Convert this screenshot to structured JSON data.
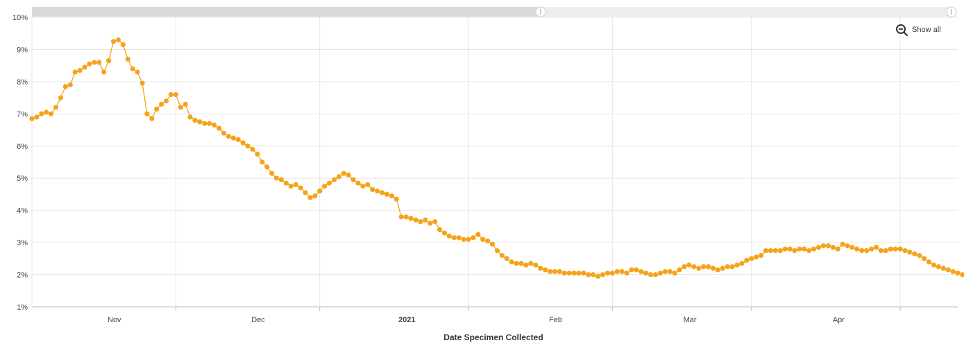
{
  "controls": {
    "show_all_label": "Show all",
    "zoom_out_icon": "zoom-out-icon",
    "navigator_handle_icon": "drag-handle-icon"
  },
  "colors": {
    "series": "#f5a31a",
    "grid": "#e6e6e6",
    "navigator_selected": "#d9d9d9",
    "navigator_track": "#eeeeee"
  },
  "chart_data": {
    "type": "line",
    "xlabel": "Date Specimen Collected",
    "ylabel": "",
    "y_unit": "%",
    "ylim": [
      1,
      10
    ],
    "yticks": [
      1,
      2,
      3,
      4,
      5,
      6,
      7,
      8,
      9,
      10
    ],
    "ytick_labels": [
      "1%",
      "2%",
      "3%",
      "4%",
      "5%",
      "6%",
      "7%",
      "8%",
      "9%",
      "10%"
    ],
    "xlim": [
      "2020-10-17",
      "2021-04-28"
    ],
    "xticks": [
      {
        "label": "Nov",
        "date": "2020-11-01",
        "bold": false
      },
      {
        "label": "Dec",
        "date": "2020-12-01",
        "bold": false
      },
      {
        "label": "2021",
        "date": "2021-01-01",
        "bold": true
      },
      {
        "label": "Feb",
        "date": "2021-02-01",
        "bold": false
      },
      {
        "label": "Mar",
        "date": "2021-03-01",
        "bold": false
      },
      {
        "label": "Apr",
        "date": "2021-04-01",
        "bold": false
      }
    ],
    "grid": true,
    "legend": "none",
    "series": [
      {
        "start_date": "2020-10-17",
        "step_days": 1,
        "values": [
          6.85,
          6.9,
          7.0,
          7.05,
          7.0,
          7.2,
          7.5,
          7.85,
          7.9,
          8.3,
          8.35,
          8.45,
          8.55,
          8.6,
          8.6,
          8.3,
          8.65,
          9.25,
          9.3,
          9.15,
          8.7,
          8.4,
          8.3,
          7.95,
          7.0,
          6.85,
          7.15,
          7.3,
          7.4,
          7.6,
          7.6,
          7.2,
          7.3,
          6.9,
          6.8,
          6.75,
          6.7,
          6.7,
          6.65,
          6.55,
          6.4,
          6.3,
          6.25,
          6.2,
          6.1,
          6.0,
          5.9,
          5.75,
          5.5,
          5.35,
          5.15,
          5.0,
          4.95,
          4.85,
          4.75,
          4.8,
          4.7,
          4.55,
          4.4,
          4.45,
          4.6,
          4.75,
          4.85,
          4.95,
          5.05,
          5.15,
          5.1,
          4.95,
          4.85,
          4.75,
          4.8,
          4.65,
          4.6,
          4.55,
          4.5,
          4.45,
          4.35,
          3.8,
          3.8,
          3.75,
          3.7,
          3.65,
          3.7,
          3.6,
          3.65,
          3.4,
          3.3,
          3.2,
          3.15,
          3.15,
          3.1,
          3.1,
          3.15,
          3.25,
          3.1,
          3.05,
          2.95,
          2.75,
          2.6,
          2.5,
          2.4,
          2.35,
          2.35,
          2.3,
          2.35,
          2.3,
          2.2,
          2.15,
          2.1,
          2.1,
          2.1,
          2.05,
          2.05,
          2.05,
          2.05,
          2.05,
          2.0,
          2.0,
          1.95,
          2.0,
          2.05,
          2.05,
          2.1,
          2.1,
          2.05,
          2.15,
          2.15,
          2.1,
          2.05,
          2.0,
          2.0,
          2.05,
          2.1,
          2.1,
          2.05,
          2.15,
          2.25,
          2.3,
          2.25,
          2.2,
          2.25,
          2.25,
          2.2,
          2.15,
          2.2,
          2.25,
          2.25,
          2.3,
          2.35,
          2.45,
          2.5,
          2.55,
          2.6,
          2.75,
          2.75,
          2.75,
          2.75,
          2.8,
          2.8,
          2.75,
          2.8,
          2.8,
          2.75,
          2.8,
          2.85,
          2.9,
          2.9,
          2.85,
          2.8,
          2.95,
          2.9,
          2.85,
          2.8,
          2.75,
          2.75,
          2.8,
          2.85,
          2.75,
          2.75,
          2.8,
          2.8,
          2.8,
          2.75,
          2.7,
          2.65,
          2.6,
          2.5,
          2.4,
          2.3,
          2.25,
          2.2,
          2.15,
          2.1,
          2.05,
          2.0,
          1.95,
          1.9,
          1.95,
          1.9,
          1.85,
          1.8
        ]
      }
    ]
  }
}
